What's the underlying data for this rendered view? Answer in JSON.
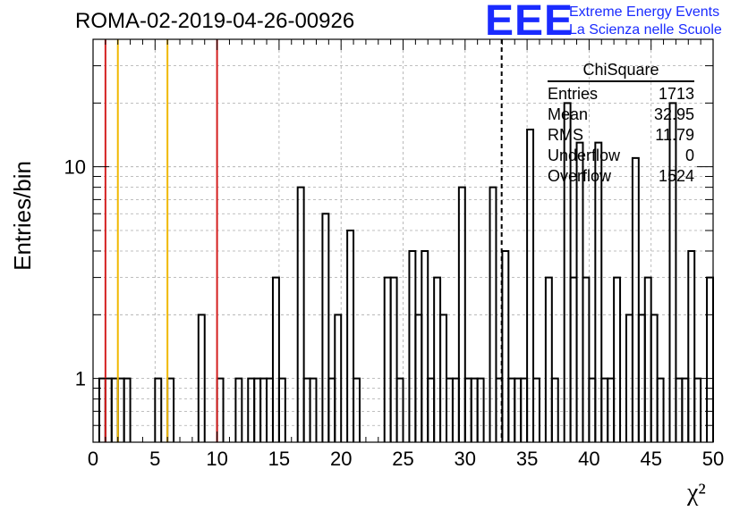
{
  "title": "ROMA-02-2019-04-26-00926",
  "logo": {
    "mark": "EEE",
    "line1": "Extreme Energy Events",
    "line2": "La Scienza nelle Scuole",
    "color": "#1a2bff"
  },
  "stats": {
    "title": "ChiSquare",
    "rows": [
      {
        "label": "Entries",
        "value": "1713"
      },
      {
        "label": "Mean",
        "value": "32.95"
      },
      {
        "label": "RMS",
        "value": "11.79"
      },
      {
        "label": "Underflow",
        "value": "0"
      },
      {
        "label": "Overflow",
        "value": "1524"
      }
    ]
  },
  "chart_data": {
    "type": "bar",
    "histogram": true,
    "log_y": true,
    "grid": true,
    "xlabel": "χ²",
    "ylabel": "Entries/bin",
    "xlim": [
      0,
      50
    ],
    "ylim": [
      0.5,
      40
    ],
    "xticks": [
      0,
      5,
      10,
      15,
      20,
      25,
      30,
      35,
      40,
      45,
      50
    ],
    "yticks": [
      1,
      10
    ],
    "bin_width": 0.5,
    "bins": [
      {
        "x": 0.5,
        "y": 1
      },
      {
        "x": 1.0,
        "y": 1
      },
      {
        "x": 1.5,
        "y": 1
      },
      {
        "x": 2.0,
        "y": 1
      },
      {
        "x": 2.5,
        "y": 1
      },
      {
        "x": 5.0,
        "y": 1
      },
      {
        "x": 6.0,
        "y": 1
      },
      {
        "x": 8.5,
        "y": 2
      },
      {
        "x": 10.0,
        "y": 1
      },
      {
        "x": 11.5,
        "y": 1
      },
      {
        "x": 12.5,
        "y": 1
      },
      {
        "x": 13.0,
        "y": 1
      },
      {
        "x": 13.5,
        "y": 1
      },
      {
        "x": 14.0,
        "y": 1
      },
      {
        "x": 14.5,
        "y": 3
      },
      {
        "x": 15.0,
        "y": 1
      },
      {
        "x": 16.5,
        "y": 8
      },
      {
        "x": 17.0,
        "y": 1
      },
      {
        "x": 17.5,
        "y": 1
      },
      {
        "x": 18.5,
        "y": 6
      },
      {
        "x": 19.0,
        "y": 1
      },
      {
        "x": 19.5,
        "y": 2
      },
      {
        "x": 20.5,
        "y": 5
      },
      {
        "x": 21.0,
        "y": 1
      },
      {
        "x": 23.5,
        "y": 3
      },
      {
        "x": 24.0,
        "y": 3
      },
      {
        "x": 24.5,
        "y": 1
      },
      {
        "x": 25.5,
        "y": 4
      },
      {
        "x": 26.0,
        "y": 2
      },
      {
        "x": 26.5,
        "y": 4
      },
      {
        "x": 27.0,
        "y": 1
      },
      {
        "x": 27.5,
        "y": 3
      },
      {
        "x": 28.0,
        "y": 2
      },
      {
        "x": 28.5,
        "y": 1
      },
      {
        "x": 29.0,
        "y": 1
      },
      {
        "x": 29.5,
        "y": 8
      },
      {
        "x": 30.0,
        "y": 1
      },
      {
        "x": 30.5,
        "y": 1
      },
      {
        "x": 31.0,
        "y": 1
      },
      {
        "x": 32.0,
        "y": 8
      },
      {
        "x": 32.5,
        "y": 1
      },
      {
        "x": 33.0,
        "y": 4
      },
      {
        "x": 33.5,
        "y": 1
      },
      {
        "x": 34.0,
        "y": 1
      },
      {
        "x": 34.5,
        "y": 1
      },
      {
        "x": 35.0,
        "y": 15
      },
      {
        "x": 35.5,
        "y": 1
      },
      {
        "x": 36.5,
        "y": 3
      },
      {
        "x": 37.0,
        "y": 1
      },
      {
        "x": 38.0,
        "y": 20
      },
      {
        "x": 38.5,
        "y": 3
      },
      {
        "x": 39.0,
        "y": 13
      },
      {
        "x": 39.5,
        "y": 3
      },
      {
        "x": 40.0,
        "y": 1
      },
      {
        "x": 40.5,
        "y": 13
      },
      {
        "x": 41.0,
        "y": 1
      },
      {
        "x": 41.5,
        "y": 1
      },
      {
        "x": 42.0,
        "y": 3
      },
      {
        "x": 43.0,
        "y": 2
      },
      {
        "x": 43.5,
        "y": 11
      },
      {
        "x": 44.0,
        "y": 2
      },
      {
        "x": 44.5,
        "y": 3
      },
      {
        "x": 45.0,
        "y": 2
      },
      {
        "x": 45.5,
        "y": 1
      },
      {
        "x": 46.5,
        "y": 20
      },
      {
        "x": 47.0,
        "y": 1
      },
      {
        "x": 47.5,
        "y": 1
      },
      {
        "x": 48.0,
        "y": 4
      },
      {
        "x": 48.5,
        "y": 1
      },
      {
        "x": 49.5,
        "y": 3
      }
    ],
    "reference_lines": [
      {
        "x": 1.0,
        "color": "#d42020",
        "style": "solid"
      },
      {
        "x": 2.0,
        "color": "#f0b800",
        "style": "solid"
      },
      {
        "x": 6.0,
        "color": "#f0b800",
        "style": "solid"
      },
      {
        "x": 10.0,
        "color": "#d42020",
        "style": "solid"
      },
      {
        "x": 32.95,
        "color": "#000000",
        "style": "dashed"
      }
    ]
  }
}
